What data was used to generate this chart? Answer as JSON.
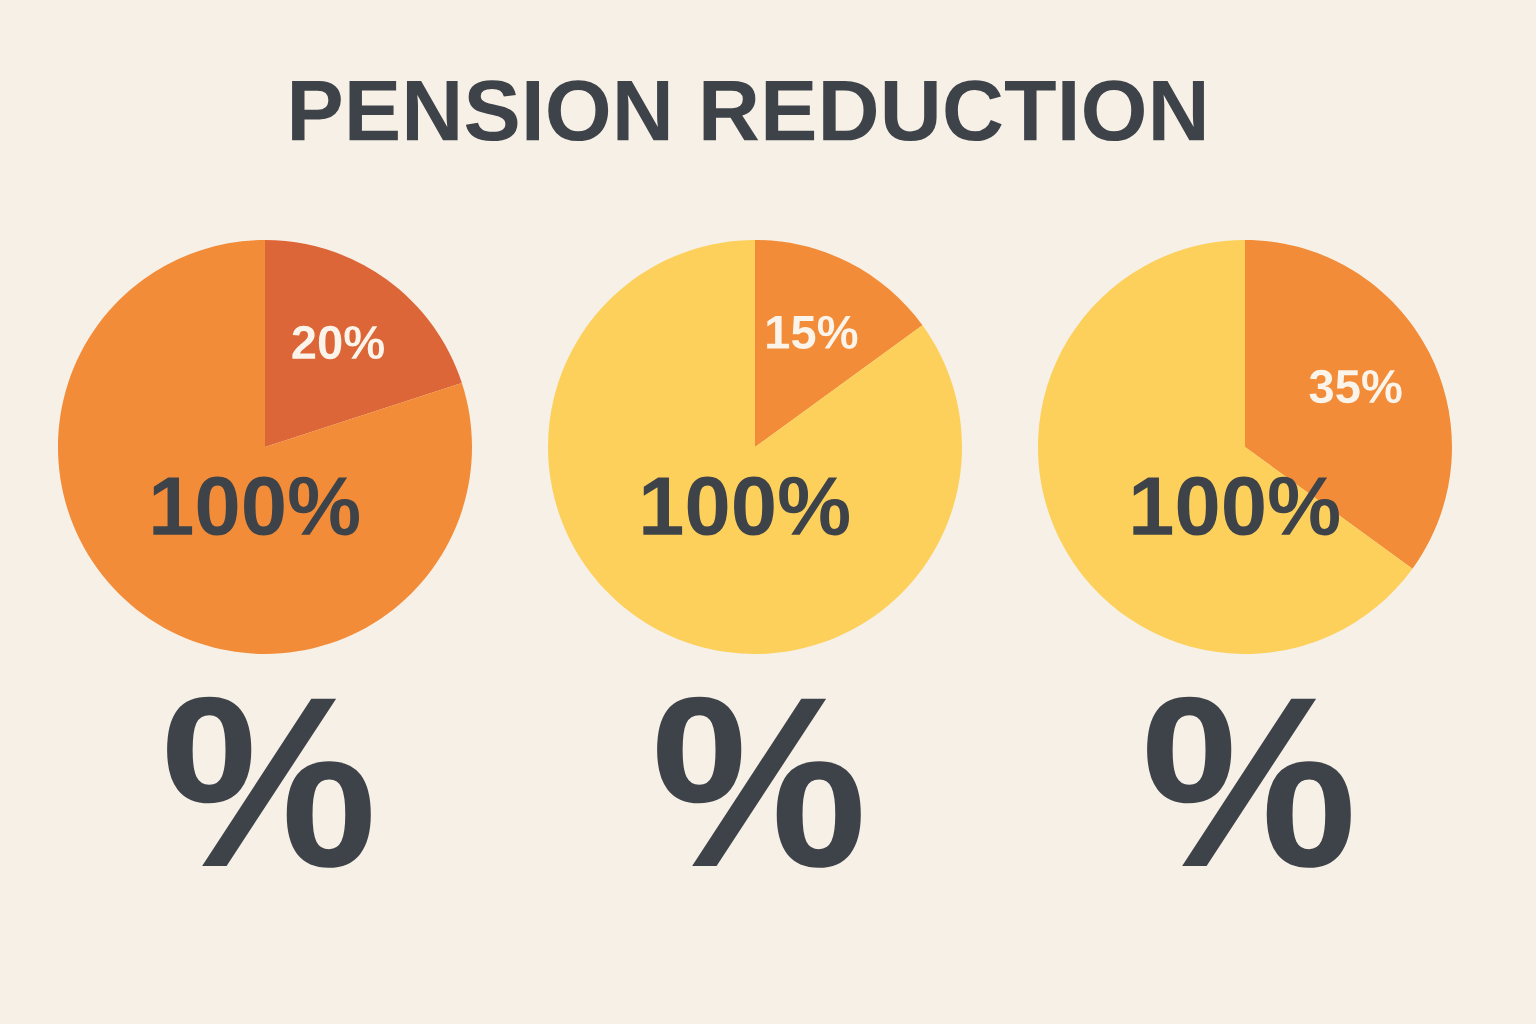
{
  "chart_data": [
    {
      "type": "pie",
      "title": "PENSION REDUCTION",
      "categories": [
        null,
        null
      ],
      "values": [
        20,
        80
      ],
      "colors": [
        "#dd6638",
        "#f28c38"
      ],
      "value_labels": [
        "20%",
        null
      ],
      "annotations": [
        "100%",
        "%"
      ]
    },
    {
      "type": "pie",
      "categories": [
        null,
        null
      ],
      "values": [
        15,
        85
      ],
      "colors": [
        "#f28c38",
        "#fcd05a"
      ],
      "value_labels": [
        "15%",
        null
      ],
      "annotations": [
        "100%",
        "%"
      ]
    },
    {
      "type": "pie",
      "categories": [
        null,
        null
      ],
      "values": [
        35,
        65
      ],
      "colors": [
        "#f28c38",
        "#fcd05a"
      ],
      "value_labels": [
        "35%",
        null
      ],
      "annotations": [
        "100%",
        "%"
      ]
    }
  ]
}
